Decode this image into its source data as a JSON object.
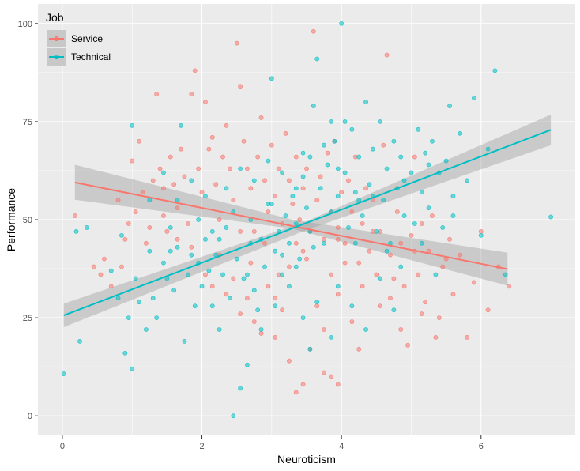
{
  "chart_data": {
    "type": "scatter",
    "title": "",
    "xlabel": "Neuroticism",
    "ylabel": "Performance",
    "xlim": [
      -0.35,
      7.35
    ],
    "ylim": [
      -5,
      105
    ],
    "xticks": [
      0,
      2,
      4,
      6
    ],
    "yticks": [
      0,
      25,
      50,
      75,
      100
    ],
    "grid": true,
    "legend": {
      "title": "Job",
      "position": "top-left-inside"
    },
    "colors": {
      "Service": "#F8766D",
      "Technical": "#00BFC4",
      "ribbon": "#999999",
      "panel": "#EBEBEB",
      "grid": "#FFFFFF"
    },
    "series": [
      {
        "name": "Service",
        "fit": {
          "x": [
            0.18,
            6.38
          ],
          "y": [
            59.5,
            37.4
          ]
        },
        "ribbon": {
          "x": [
            0.18,
            3.3,
            6.38
          ],
          "lower": [
            55.1,
            47.7,
            33.2
          ],
          "upper": [
            64.0,
            50.0,
            41.6
          ]
        },
        "points": [
          [
            0.18,
            51
          ],
          [
            0.45,
            38
          ],
          [
            0.55,
            36
          ],
          [
            0.6,
            40
          ],
          [
            0.7,
            33
          ],
          [
            0.8,
            55
          ],
          [
            0.85,
            38
          ],
          [
            0.9,
            45
          ],
          [
            0.95,
            49
          ],
          [
            1.0,
            65
          ],
          [
            1.05,
            52
          ],
          [
            1.1,
            70
          ],
          [
            1.15,
            57
          ],
          [
            1.2,
            44
          ],
          [
            1.3,
            60
          ],
          [
            1.35,
            82
          ],
          [
            1.4,
            63
          ],
          [
            1.45,
            58
          ],
          [
            1.5,
            47
          ],
          [
            1.55,
            66
          ],
          [
            1.6,
            59
          ],
          [
            1.65,
            53
          ],
          [
            1.7,
            68
          ],
          [
            1.75,
            61
          ],
          [
            1.8,
            49
          ],
          [
            1.85,
            82
          ],
          [
            1.9,
            88
          ],
          [
            1.95,
            63
          ],
          [
            2.0,
            57
          ],
          [
            2.05,
            80
          ],
          [
            2.1,
            68
          ],
          [
            2.15,
            71
          ],
          [
            2.2,
            59
          ],
          [
            2.25,
            50
          ],
          [
            2.3,
            66
          ],
          [
            2.35,
            74
          ],
          [
            2.4,
            63
          ],
          [
            2.45,
            55
          ],
          [
            2.5,
            95
          ],
          [
            2.55,
            84
          ],
          [
            2.6,
            70
          ],
          [
            2.65,
            63
          ],
          [
            2.7,
            58
          ],
          [
            2.75,
            47
          ],
          [
            2.8,
            66
          ],
          [
            2.85,
            76
          ],
          [
            2.9,
            60
          ],
          [
            2.95,
            52
          ],
          [
            3.0,
            69
          ],
          [
            3.05,
            56
          ],
          [
            3.1,
            63
          ],
          [
            3.15,
            49
          ],
          [
            3.2,
            72
          ],
          [
            3.25,
            60
          ],
          [
            3.3,
            54
          ],
          [
            3.35,
            66
          ],
          [
            3.4,
            50
          ],
          [
            3.45,
            58
          ],
          [
            3.5,
            63
          ],
          [
            3.55,
            47
          ],
          [
            3.6,
            98
          ],
          [
            3.65,
            55
          ],
          [
            3.7,
            61
          ],
          [
            3.75,
            45
          ],
          [
            3.8,
            67
          ],
          [
            3.85,
            52
          ],
          [
            3.9,
            70
          ],
          [
            3.95,
            48
          ],
          [
            4.0,
            57
          ],
          [
            4.05,
            44
          ],
          [
            4.1,
            60
          ],
          [
            4.15,
            52
          ],
          [
            4.2,
            66
          ],
          [
            4.25,
            39
          ],
          [
            4.3,
            49
          ],
          [
            4.35,
            58
          ],
          [
            4.4,
            42
          ],
          [
            4.45,
            55
          ],
          [
            4.5,
            36
          ],
          [
            4.55,
            47
          ],
          [
            4.6,
            69
          ],
          [
            4.65,
            92
          ],
          [
            4.7,
            41
          ],
          [
            4.75,
            35
          ],
          [
            4.8,
            52
          ],
          [
            4.85,
            44
          ],
          [
            4.9,
            33
          ],
          [
            5.0,
            46
          ],
          [
            5.05,
            66
          ],
          [
            5.1,
            36
          ],
          [
            5.15,
            49
          ],
          [
            5.2,
            29
          ],
          [
            5.25,
            42
          ],
          [
            5.3,
            51
          ],
          [
            5.4,
            25
          ],
          [
            5.45,
            38
          ],
          [
            5.55,
            45
          ],
          [
            5.6,
            31
          ],
          [
            5.7,
            41
          ],
          [
            5.8,
            20
          ],
          [
            5.9,
            34
          ],
          [
            6.0,
            47
          ],
          [
            6.1,
            27
          ],
          [
            6.25,
            38
          ],
          [
            6.4,
            33
          ],
          [
            3.35,
            6
          ],
          [
            3.45,
            8
          ],
          [
            3.75,
            11
          ],
          [
            3.85,
            10
          ],
          [
            3.95,
            8
          ],
          [
            3.25,
            14
          ],
          [
            3.55,
            17
          ],
          [
            2.85,
            21
          ],
          [
            3.05,
            20
          ],
          [
            2.55,
            26
          ],
          [
            2.75,
            24
          ],
          [
            2.35,
            31
          ],
          [
            2.65,
            30
          ],
          [
            2.45,
            35
          ],
          [
            2.95,
            33
          ],
          [
            3.15,
            27
          ],
          [
            3.65,
            28
          ],
          [
            3.95,
            31
          ],
          [
            4.15,
            24
          ],
          [
            3.85,
            36
          ],
          [
            3.25,
            38
          ],
          [
            2.25,
            41
          ],
          [
            2.05,
            36
          ],
          [
            1.85,
            43
          ],
          [
            2.55,
            47
          ],
          [
            3.45,
            42
          ],
          [
            4.05,
            39
          ],
          [
            4.55,
            28
          ],
          [
            4.85,
            22
          ],
          [
            4.95,
            18
          ],
          [
            5.15,
            26
          ],
          [
            5.35,
            20
          ],
          [
            4.25,
            17
          ],
          [
            3.75,
            22
          ],
          [
            3.05,
            30
          ],
          [
            2.15,
            33
          ],
          [
            1.65,
            45
          ],
          [
            1.45,
            51
          ],
          [
            1.25,
            48
          ],
          [
            2.7,
            39
          ],
          [
            3.35,
            44
          ],
          [
            3.95,
            45
          ],
          [
            4.45,
            47
          ],
          [
            5.05,
            42
          ],
          [
            5.5,
            40
          ],
          [
            2.9,
            44
          ],
          [
            3.5,
            40
          ],
          [
            4.3,
            33
          ],
          [
            4.7,
            30
          ],
          [
            3.1,
            36
          ]
        ]
      },
      {
        "name": "Technical",
        "fit": {
          "x": [
            0.02,
            7.0
          ],
          "y": [
            25.6,
            72.9
          ]
        },
        "ribbon": {
          "x": [
            0.02,
            3.5,
            7.0
          ],
          "lower": [
            22.6,
            47.4,
            69.0
          ],
          "upper": [
            28.6,
            49.6,
            76.8
          ]
        },
        "points": [
          [
            0.02,
            10.7
          ],
          [
            0.2,
            47
          ],
          [
            0.25,
            19
          ],
          [
            0.35,
            48
          ],
          [
            0.7,
            37
          ],
          [
            0.8,
            30
          ],
          [
            0.85,
            46
          ],
          [
            0.9,
            16
          ],
          [
            0.95,
            25
          ],
          [
            1.0,
            74
          ],
          [
            1.0,
            12
          ],
          [
            1.05,
            35
          ],
          [
            1.1,
            29
          ],
          [
            1.2,
            22
          ],
          [
            1.25,
            42
          ],
          [
            1.3,
            30
          ],
          [
            1.35,
            25
          ],
          [
            1.45,
            39
          ],
          [
            1.5,
            35
          ],
          [
            1.55,
            48
          ],
          [
            1.6,
            32
          ],
          [
            1.65,
            43
          ],
          [
            1.7,
            74
          ],
          [
            1.75,
            19
          ],
          [
            1.8,
            36
          ],
          [
            1.85,
            41
          ],
          [
            1.9,
            28
          ],
          [
            1.95,
            50
          ],
          [
            2.0,
            33
          ],
          [
            2.05,
            45
          ],
          [
            2.1,
            37
          ],
          [
            2.15,
            28
          ],
          [
            2.2,
            41
          ],
          [
            2.25,
            22
          ],
          [
            2.3,
            36
          ],
          [
            2.35,
            48
          ],
          [
            2.4,
            30
          ],
          [
            2.45,
            0
          ],
          [
            2.5,
            40
          ],
          [
            2.55,
            7
          ],
          [
            2.6,
            35
          ],
          [
            2.65,
            13
          ],
          [
            2.7,
            44
          ],
          [
            2.75,
            32
          ],
          [
            2.8,
            27
          ],
          [
            2.85,
            45
          ],
          [
            2.9,
            38
          ],
          [
            2.95,
            54
          ],
          [
            3.0,
            86
          ],
          [
            3.05,
            42
          ],
          [
            3.1,
            47
          ],
          [
            3.15,
            36
          ],
          [
            3.2,
            51
          ],
          [
            3.25,
            44
          ],
          [
            3.3,
            56
          ],
          [
            3.35,
            49
          ],
          [
            3.4,
            40
          ],
          [
            3.45,
            61
          ],
          [
            3.5,
            53
          ],
          [
            3.55,
            47
          ],
          [
            3.6,
            79
          ],
          [
            3.65,
            91
          ],
          [
            3.7,
            58
          ],
          [
            3.75,
            44
          ],
          [
            3.8,
            64
          ],
          [
            3.85,
            52
          ],
          [
            3.9,
            70
          ],
          [
            3.95,
            56
          ],
          [
            4.0,
            100
          ],
          [
            4.05,
            62
          ],
          [
            4.1,
            48
          ],
          [
            4.15,
            73
          ],
          [
            4.2,
            57
          ],
          [
            4.25,
            66
          ],
          [
            4.3,
            51
          ],
          [
            4.35,
            80
          ],
          [
            4.4,
            59
          ],
          [
            4.45,
            68
          ],
          [
            4.5,
            47
          ],
          [
            4.55,
            75
          ],
          [
            4.6,
            55
          ],
          [
            4.65,
            63
          ],
          [
            4.7,
            44
          ],
          [
            4.75,
            70
          ],
          [
            4.8,
            58
          ],
          [
            4.85,
            66
          ],
          [
            4.9,
            51
          ],
          [
            5.0,
            62
          ],
          [
            5.05,
            49
          ],
          [
            5.1,
            73
          ],
          [
            5.15,
            57
          ],
          [
            5.2,
            67
          ],
          [
            5.25,
            53
          ],
          [
            5.3,
            70
          ],
          [
            5.4,
            62
          ],
          [
            5.45,
            48
          ],
          [
            5.5,
            65
          ],
          [
            5.55,
            79
          ],
          [
            5.6,
            56
          ],
          [
            5.7,
            72
          ],
          [
            5.8,
            60
          ],
          [
            5.9,
            81
          ],
          [
            6.0,
            46
          ],
          [
            6.1,
            68
          ],
          [
            6.2,
            88
          ],
          [
            6.35,
            36
          ],
          [
            7.0,
            50.7
          ],
          [
            3.05,
            28
          ],
          [
            3.25,
            33
          ],
          [
            3.45,
            25
          ],
          [
            3.65,
            29
          ],
          [
            3.85,
            20
          ],
          [
            3.55,
            17
          ],
          [
            2.85,
            22
          ],
          [
            3.15,
            41
          ],
          [
            3.35,
            38
          ],
          [
            3.95,
            33
          ],
          [
            4.15,
            28
          ],
          [
            4.35,
            22
          ],
          [
            4.55,
            35
          ],
          [
            4.75,
            27
          ],
          [
            2.65,
            36
          ],
          [
            2.25,
            45
          ],
          [
            2.45,
            52
          ],
          [
            2.05,
            56
          ],
          [
            1.85,
            60
          ],
          [
            1.65,
            55
          ],
          [
            1.45,
            62
          ],
          [
            2.75,
            60
          ],
          [
            2.95,
            65
          ],
          [
            3.15,
            62
          ],
          [
            3.35,
            58
          ],
          [
            3.55,
            66
          ],
          [
            3.75,
            69
          ],
          [
            3.95,
            63
          ],
          [
            4.25,
            55
          ],
          [
            4.65,
            42
          ],
          [
            4.85,
            38
          ],
          [
            5.15,
            44
          ],
          [
            5.35,
            36
          ],
          [
            2.35,
            58
          ],
          [
            2.55,
            63
          ],
          [
            3.45,
            67
          ],
          [
            3.85,
            75
          ],
          [
            4.05,
            75
          ],
          [
            4.45,
            56
          ],
          [
            5.6,
            51
          ],
          [
            1.25,
            55
          ],
          [
            1.55,
            42
          ],
          [
            1.95,
            39
          ],
          [
            2.15,
            47
          ],
          [
            2.7,
            50
          ],
          [
            3.0,
            54
          ],
          [
            3.6,
            43
          ],
          [
            4.2,
            44
          ],
          [
            4.9,
            60
          ],
          [
            5.25,
            64
          ]
        ]
      }
    ]
  }
}
